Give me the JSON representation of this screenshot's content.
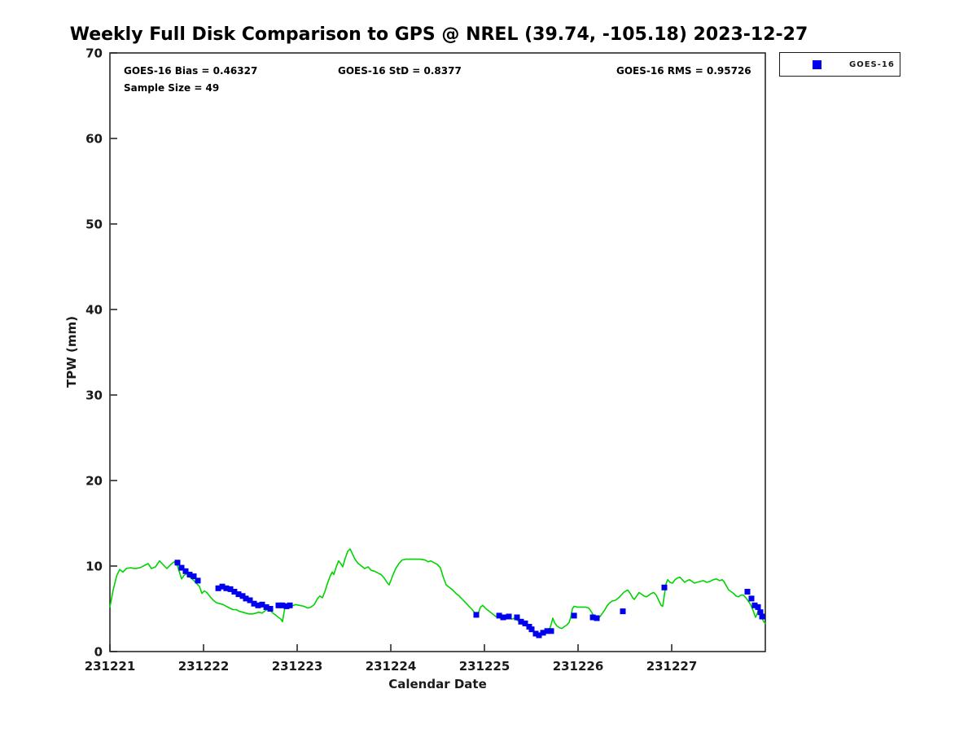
{
  "title": "Weekly Full Disk Comparison to GPS @ NREL (39.74, -105.18) 2023-12-27",
  "chart_data": {
    "type": "line",
    "title": "Weekly Full Disk Comparison to GPS @ NREL (39.74, -105.18) 2023-12-27",
    "xlabel": "Calendar Date",
    "ylabel": "TPW (mm)",
    "xlim": [
      231221,
      231228
    ],
    "ylim": [
      0,
      70
    ],
    "x_ticks": [
      231221,
      231222,
      231223,
      231224,
      231225,
      231226,
      231227
    ],
    "y_ticks": [
      0,
      10,
      20,
      30,
      40,
      50,
      60,
      70
    ],
    "grid": false,
    "axis_color": "#1a1a1a",
    "annotations": [
      "GOES-16 Bias = 0.46327",
      "GOES-16 StD = 0.8377",
      "GOES-16 RMS = 0.95726",
      "Sample Size = 49"
    ],
    "sample_size": 49,
    "legend": {
      "position": "outside-top-right",
      "entries": [
        "GOES-16"
      ]
    },
    "series": [
      {
        "name": "GPS",
        "type": "line",
        "color": "#00d400",
        "points": [
          [
            231221.0,
            5.2
          ],
          [
            231221.035,
            7.2
          ],
          [
            231221.07,
            8.8
          ],
          [
            231221.104,
            9.6
          ],
          [
            231221.139,
            9.3
          ],
          [
            231221.174,
            9.7
          ],
          [
            231221.217,
            9.8
          ],
          [
            231221.27,
            9.7
          ],
          [
            231221.322,
            9.8
          ],
          [
            231221.374,
            10.1
          ],
          [
            231221.409,
            10.3
          ],
          [
            231221.443,
            9.7
          ],
          [
            231221.487,
            9.9
          ],
          [
            231221.53,
            10.6
          ],
          [
            231221.574,
            10.1
          ],
          [
            231221.609,
            9.7
          ],
          [
            231221.652,
            10.2
          ],
          [
            231221.687,
            10.5
          ],
          [
            231221.722,
            10.0
          ],
          [
            231221.748,
            9.1
          ],
          [
            231221.765,
            8.5
          ],
          [
            231221.791,
            8.9
          ],
          [
            231221.817,
            9.1
          ],
          [
            231221.852,
            8.7
          ],
          [
            231221.887,
            8.4
          ],
          [
            231221.922,
            8.0
          ],
          [
            231221.957,
            7.6
          ],
          [
            231221.983,
            6.8
          ],
          [
            231222.009,
            7.1
          ],
          [
            231222.035,
            6.9
          ],
          [
            231222.07,
            6.4
          ],
          [
            231222.104,
            6.0
          ],
          [
            231222.139,
            5.7
          ],
          [
            231222.174,
            5.6
          ],
          [
            231222.209,
            5.5
          ],
          [
            231222.243,
            5.3
          ],
          [
            231222.278,
            5.1
          ],
          [
            231222.313,
            4.9
          ],
          [
            231222.348,
            4.9
          ],
          [
            231222.383,
            4.7
          ],
          [
            231222.417,
            4.6
          ],
          [
            231222.452,
            4.5
          ],
          [
            231222.487,
            4.4
          ],
          [
            231222.522,
            4.4
          ],
          [
            231222.557,
            4.5
          ],
          [
            231222.591,
            4.6
          ],
          [
            231222.626,
            4.5
          ],
          [
            231222.661,
            4.8
          ],
          [
            231222.696,
            5.0
          ],
          [
            231222.73,
            4.6
          ],
          [
            231222.765,
            4.3
          ],
          [
            231222.8,
            4.0
          ],
          [
            231222.826,
            3.8
          ],
          [
            231222.843,
            3.5
          ],
          [
            231222.87,
            5.2
          ],
          [
            231222.904,
            5.4
          ],
          [
            231222.939,
            5.3
          ],
          [
            231222.983,
            5.5
          ],
          [
            231223.026,
            5.4
          ],
          [
            231223.07,
            5.3
          ],
          [
            231223.113,
            5.1
          ],
          [
            231223.148,
            5.2
          ],
          [
            231223.183,
            5.5
          ],
          [
            231223.217,
            6.2
          ],
          [
            231223.243,
            6.5
          ],
          [
            231223.27,
            6.3
          ],
          [
            231223.296,
            7.0
          ],
          [
            231223.322,
            7.9
          ],
          [
            231223.348,
            8.7
          ],
          [
            231223.374,
            9.3
          ],
          [
            231223.391,
            9.0
          ],
          [
            231223.417,
            9.9
          ],
          [
            231223.443,
            10.6
          ],
          [
            231223.47,
            10.2
          ],
          [
            231223.487,
            9.9
          ],
          [
            231223.513,
            10.9
          ],
          [
            231223.539,
            11.7
          ],
          [
            231223.565,
            12.0
          ],
          [
            231223.591,
            11.4
          ],
          [
            231223.617,
            10.8
          ],
          [
            231223.652,
            10.3
          ],
          [
            231223.687,
            10.0
          ],
          [
            231223.722,
            9.7
          ],
          [
            231223.757,
            9.9
          ],
          [
            231223.791,
            9.5
          ],
          [
            231223.826,
            9.4
          ],
          [
            231223.861,
            9.2
          ],
          [
            231223.896,
            9.0
          ],
          [
            231223.93,
            8.6
          ],
          [
            231223.965,
            8.0
          ],
          [
            231223.983,
            7.8
          ],
          [
            231224.017,
            8.8
          ],
          [
            231224.052,
            9.7
          ],
          [
            231224.087,
            10.3
          ],
          [
            231224.122,
            10.7
          ],
          [
            231224.157,
            10.8
          ],
          [
            231224.209,
            10.8
          ],
          [
            231224.261,
            10.8
          ],
          [
            231224.313,
            10.8
          ],
          [
            231224.365,
            10.7
          ],
          [
            231224.4,
            10.5
          ],
          [
            231224.426,
            10.6
          ],
          [
            231224.461,
            10.4
          ],
          [
            231224.496,
            10.2
          ],
          [
            231224.53,
            9.8
          ],
          [
            231224.557,
            8.8
          ],
          [
            231224.591,
            7.8
          ],
          [
            231224.626,
            7.5
          ],
          [
            231224.661,
            7.2
          ],
          [
            231224.696,
            6.8
          ],
          [
            231224.73,
            6.5
          ],
          [
            231224.765,
            6.1
          ],
          [
            231224.8,
            5.7
          ],
          [
            231224.835,
            5.3
          ],
          [
            231224.87,
            4.9
          ],
          [
            231224.904,
            4.4
          ],
          [
            231224.93,
            4.3
          ],
          [
            231224.957,
            5.2
          ],
          [
            231224.983,
            5.4
          ],
          [
            231225.017,
            5.0
          ],
          [
            231225.052,
            4.7
          ],
          [
            231225.087,
            4.4
          ],
          [
            231225.122,
            4.1
          ],
          [
            231225.157,
            4.2
          ],
          [
            231225.191,
            4.0
          ],
          [
            231225.226,
            3.8
          ],
          [
            231225.261,
            3.9
          ],
          [
            231225.296,
            3.8
          ],
          [
            231225.322,
            3.9
          ],
          [
            231225.357,
            3.6
          ],
          [
            231225.391,
            3.4
          ],
          [
            231225.426,
            3.1
          ],
          [
            231225.461,
            2.9
          ],
          [
            231225.496,
            2.6
          ],
          [
            231225.53,
            2.2
          ],
          [
            231225.565,
            2.0
          ],
          [
            231225.591,
            1.9
          ],
          [
            231225.617,
            2.1
          ],
          [
            231225.643,
            2.3
          ],
          [
            231225.67,
            2.5
          ],
          [
            231225.696,
            2.6
          ],
          [
            231225.713,
            3.2
          ],
          [
            231225.73,
            3.9
          ],
          [
            231225.748,
            3.4
          ],
          [
            231225.774,
            3.0
          ],
          [
            231225.8,
            2.8
          ],
          [
            231225.826,
            2.7
          ],
          [
            231225.852,
            2.9
          ],
          [
            231225.878,
            3.1
          ],
          [
            231225.904,
            3.4
          ],
          [
            231225.922,
            4.0
          ],
          [
            231225.939,
            5.0
          ],
          [
            231225.957,
            5.3
          ],
          [
            231225.991,
            5.2
          ],
          [
            231226.035,
            5.2
          ],
          [
            231226.078,
            5.2
          ],
          [
            231226.113,
            5.1
          ],
          [
            231226.139,
            4.7
          ],
          [
            231226.165,
            4.2
          ],
          [
            231226.191,
            3.9
          ],
          [
            231226.209,
            3.8
          ],
          [
            231226.235,
            4.1
          ],
          [
            231226.261,
            4.5
          ],
          [
            231226.287,
            4.9
          ],
          [
            231226.313,
            5.4
          ],
          [
            231226.339,
            5.7
          ],
          [
            231226.365,
            5.9
          ],
          [
            231226.4,
            6.0
          ],
          [
            231226.435,
            6.3
          ],
          [
            231226.461,
            6.6
          ],
          [
            231226.487,
            6.9
          ],
          [
            231226.513,
            7.1
          ],
          [
            231226.53,
            7.2
          ],
          [
            231226.557,
            6.8
          ],
          [
            231226.583,
            6.3
          ],
          [
            231226.6,
            6.1
          ],
          [
            231226.626,
            6.5
          ],
          [
            231226.652,
            6.9
          ],
          [
            231226.678,
            6.7
          ],
          [
            231226.704,
            6.5
          ],
          [
            231226.73,
            6.4
          ],
          [
            231226.757,
            6.6
          ],
          [
            231226.783,
            6.8
          ],
          [
            231226.809,
            6.9
          ],
          [
            231226.835,
            6.6
          ],
          [
            231226.861,
            6.0
          ],
          [
            231226.887,
            5.4
          ],
          [
            231226.904,
            5.3
          ],
          [
            231226.922,
            6.6
          ],
          [
            231226.939,
            7.9
          ],
          [
            231226.957,
            8.4
          ],
          [
            231226.983,
            8.1
          ],
          [
            231227.009,
            8.0
          ],
          [
            231227.035,
            8.4
          ],
          [
            231227.061,
            8.6
          ],
          [
            231227.087,
            8.7
          ],
          [
            231227.113,
            8.4
          ],
          [
            231227.139,
            8.1
          ],
          [
            231227.165,
            8.3
          ],
          [
            231227.191,
            8.4
          ],
          [
            231227.217,
            8.2
          ],
          [
            231227.243,
            8.0
          ],
          [
            231227.27,
            8.1
          ],
          [
            231227.304,
            8.2
          ],
          [
            231227.339,
            8.3
          ],
          [
            231227.374,
            8.1
          ],
          [
            231227.409,
            8.2
          ],
          [
            231227.443,
            8.4
          ],
          [
            231227.478,
            8.5
          ],
          [
            231227.513,
            8.3
          ],
          [
            231227.539,
            8.4
          ],
          [
            231227.557,
            8.2
          ],
          [
            231227.583,
            7.7
          ],
          [
            231227.609,
            7.2
          ],
          [
            231227.635,
            7.0
          ],
          [
            231227.661,
            6.8
          ],
          [
            231227.687,
            6.5
          ],
          [
            231227.713,
            6.4
          ],
          [
            231227.739,
            6.6
          ],
          [
            231227.765,
            6.6
          ],
          [
            231227.791,
            6.3
          ],
          [
            231227.817,
            5.9
          ],
          [
            231227.843,
            5.5
          ],
          [
            231227.87,
            4.8
          ],
          [
            231227.896,
            4.0
          ],
          [
            231227.913,
            4.4
          ],
          [
            231227.93,
            5.0
          ],
          [
            231227.948,
            4.5
          ],
          [
            231227.965,
            3.9
          ],
          [
            231227.983,
            3.5
          ],
          [
            231228.0,
            3.3
          ]
        ]
      },
      {
        "name": "GOES-16",
        "type": "scatter",
        "marker": "square",
        "color": "#0000ee",
        "points": [
          [
            231221.722,
            10.4
          ],
          [
            231221.765,
            9.8
          ],
          [
            231221.809,
            9.4
          ],
          [
            231221.852,
            9.0
          ],
          [
            231221.896,
            8.8
          ],
          [
            231221.939,
            8.3
          ],
          [
            231222.157,
            7.4
          ],
          [
            231222.2,
            7.6
          ],
          [
            231222.243,
            7.4
          ],
          [
            231222.287,
            7.3
          ],
          [
            231222.33,
            7.0
          ],
          [
            231222.374,
            6.7
          ],
          [
            231222.417,
            6.5
          ],
          [
            231222.452,
            6.2
          ],
          [
            231222.496,
            6.0
          ],
          [
            231222.539,
            5.6
          ],
          [
            231222.583,
            5.4
          ],
          [
            231222.626,
            5.5
          ],
          [
            231222.67,
            5.2
          ],
          [
            231222.713,
            5.0
          ],
          [
            231222.8,
            5.4
          ],
          [
            231222.843,
            5.4
          ],
          [
            231222.887,
            5.3
          ],
          [
            231222.922,
            5.4
          ],
          [
            231224.913,
            4.3
          ],
          [
            231225.157,
            4.2
          ],
          [
            231225.2,
            4.0
          ],
          [
            231225.261,
            4.1
          ],
          [
            231225.348,
            4.0
          ],
          [
            231225.391,
            3.5
          ],
          [
            231225.435,
            3.3
          ],
          [
            231225.478,
            2.9
          ],
          [
            231225.504,
            2.6
          ],
          [
            231225.548,
            2.1
          ],
          [
            231225.583,
            1.9
          ],
          [
            231225.626,
            2.2
          ],
          [
            231225.67,
            2.4
          ],
          [
            231225.713,
            2.4
          ],
          [
            231225.957,
            4.2
          ],
          [
            231226.157,
            4.0
          ],
          [
            231226.2,
            3.9
          ],
          [
            231226.478,
            4.7
          ],
          [
            231226.922,
            7.5
          ],
          [
            231227.809,
            7.0
          ],
          [
            231227.852,
            6.2
          ],
          [
            231227.887,
            5.4
          ],
          [
            231227.922,
            5.2
          ],
          [
            231227.948,
            4.6
          ],
          [
            231227.965,
            4.1
          ]
        ]
      }
    ]
  }
}
